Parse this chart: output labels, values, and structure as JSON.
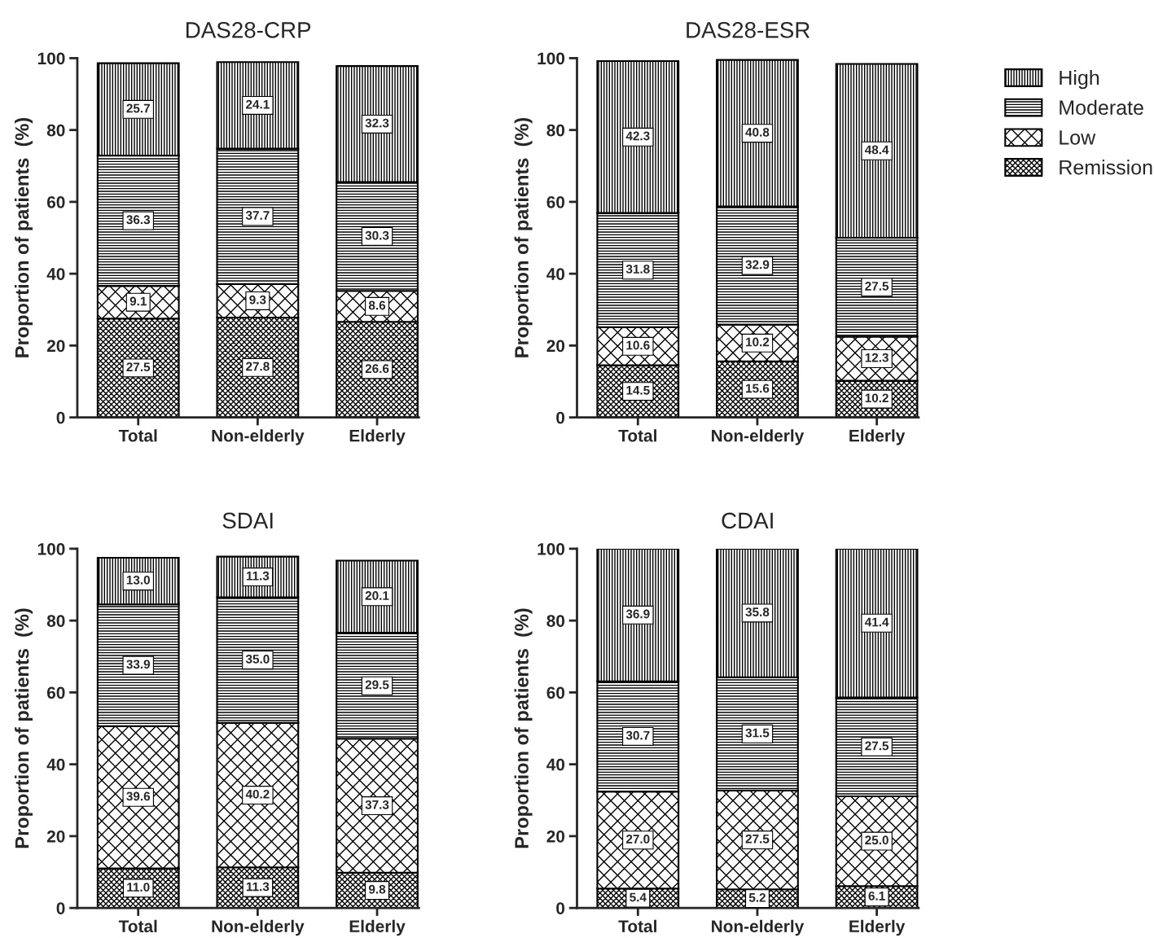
{
  "chart_data": [
    {
      "type": "bar",
      "title": "DAS28-CRP",
      "ylabel": "Proportion of patients  (%)",
      "categories": [
        "Total",
        "Non-elderly",
        "Elderly"
      ],
      "stacked": true,
      "data_labels": true,
      "ylim": [
        0,
        100
      ],
      "yticks": [
        0,
        20,
        40,
        60,
        80,
        100
      ],
      "grid": false,
      "legend": false,
      "series": [
        {
          "color": "#000000",
          "values": [
            27.5,
            27.8,
            26.6
          ]
        },
        {
          "color": "#000000",
          "values": [
            9.1,
            9.3,
            8.6
          ]
        },
        {
          "color": "#000000",
          "values": [
            36.3,
            37.7,
            30.3
          ]
        },
        {
          "color": "#000000",
          "values": [
            25.7,
            24.1,
            32.3
          ]
        }
      ]
    },
    {
      "type": "bar",
      "title": "DAS28-ESR",
      "ylabel": "Proportion of patients  (%)",
      "categories": [
        "Total",
        "Non-elderly",
        "Elderly"
      ],
      "stacked": true,
      "data_labels": true,
      "ylim": [
        0,
        100
      ],
      "yticks": [
        0,
        20,
        40,
        60,
        80,
        100
      ],
      "grid": false,
      "legend": "right",
      "series": [
        {
          "name": "Remission",
          "color": "#000000",
          "values": [
            14.5,
            15.6,
            10.2
          ]
        },
        {
          "name": "Low",
          "color": "#000000",
          "values": [
            10.6,
            10.2,
            12.3
          ]
        },
        {
          "name": "Moderate",
          "color": "#000000",
          "values": [
            31.8,
            32.9,
            27.5
          ]
        },
        {
          "name": "High",
          "color": "#000000",
          "values": [
            42.3,
            40.8,
            48.4
          ]
        }
      ]
    },
    {
      "type": "bar",
      "title": "SDAI",
      "ylabel": "Proportion of patients  (%)",
      "categories": [
        "Total",
        "Non-elderly",
        "Elderly"
      ],
      "stacked": true,
      "ylim": [
        0,
        100
      ],
      "yticks": [
        0,
        20,
        40,
        60,
        80,
        100
      ],
      "grid": false,
      "legend": false,
      "series": [
        {
          "color": "#000000",
          "values": [
            11,
            11.3,
            9.8
          ],
          "value_labels": [
            "11.0",
            "11.3",
            "9.8"
          ]
        },
        {
          "color": "#000000",
          "values": [
            39.6,
            40.2,
            37.3
          ],
          "value_labels": [
            "39.6",
            "40.2",
            "37.3"
          ]
        },
        {
          "color": "#000000",
          "values": [
            33.9,
            35,
            29.5
          ],
          "value_labels": [
            "33.9",
            "35.0",
            "29.5"
          ]
        },
        {
          "color": "#000000",
          "values": [
            13,
            11.3,
            20.1
          ],
          "value_labels": [
            "13.0",
            "11.3",
            "20.1"
          ]
        }
      ]
    },
    {
      "type": "bar",
      "title": "CDAI",
      "ylabel": "Proportion of patients  (%)",
      "categories": [
        "Total",
        "Non-elderly",
        "Elderly"
      ],
      "stacked": true,
      "ylim": [
        0,
        100
      ],
      "yticks": [
        0,
        20,
        40,
        60,
        80,
        100
      ],
      "grid": false,
      "legend": false,
      "series": [
        {
          "color": "#000000",
          "values": [
            5.4,
            5.2,
            6.1
          ],
          "value_labels": [
            "5.4",
            "5.2",
            "6.1"
          ]
        },
        {
          "color": "#000000",
          "values": [
            27,
            27.5,
            25
          ],
          "value_labels": [
            "27.0",
            "27.5",
            "25.0"
          ]
        },
        {
          "color": "#000000",
          "values": [
            30.7,
            31.5,
            27.5
          ],
          "value_labels": [
            "30.7",
            "31.5",
            "27.5"
          ]
        },
        {
          "color": "#000000",
          "values": [
            36.9,
            35.8,
            41.4
          ],
          "value_labels": [
            "36.9",
            "35.8",
            "41.4"
          ]
        }
      ]
    }
  ]
}
